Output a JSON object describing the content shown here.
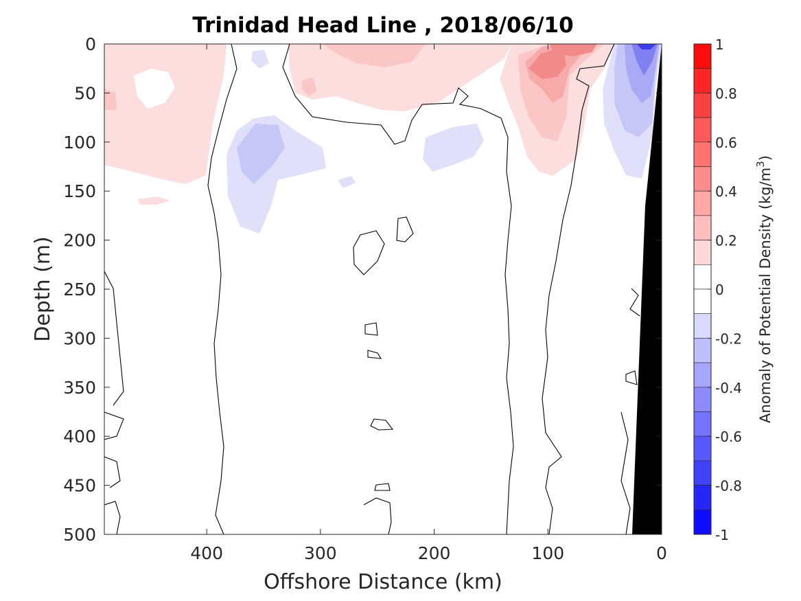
{
  "chart_data": {
    "type": "heatmap",
    "title": "Trinidad Head Line , 2018/06/10",
    "xlabel": "Offshore Distance (km)",
    "ylabel": "Depth (m)",
    "xlim": [
      490,
      0
    ],
    "ylim": [
      0,
      500
    ],
    "x_ticks": [
      "400",
      "300",
      "200",
      "100",
      "0"
    ],
    "x_tick_values": [
      400,
      300,
      200,
      100,
      0
    ],
    "y_ticks": [
      "0",
      "50",
      "100",
      "150",
      "200",
      "250",
      "300",
      "350",
      "400",
      "450",
      "500"
    ],
    "y_tick_values": [
      0,
      50,
      100,
      150,
      200,
      250,
      300,
      350,
      400,
      450,
      500
    ],
    "colorbar": {
      "label": "Anomaly of Potential Density (kg/m3)",
      "label_main": "Anomaly of Potential Density (kg/m",
      "label_sup": "3",
      "label_close": ")",
      "range": [
        -1,
        1
      ],
      "levels_step": 0.1,
      "ticks": [
        "1",
        "0.8",
        "0.6",
        "0.4",
        "0.2",
        "0",
        "-0.2",
        "-0.4",
        "-0.6",
        "-0.8",
        "-1"
      ],
      "tick_values": [
        1,
        0.8,
        0.6,
        0.4,
        0.2,
        0,
        -0.2,
        -0.4,
        -0.6,
        -0.8,
        -1
      ]
    },
    "zero_contour_lines": true,
    "bathymetry_fill": "#000000",
    "anomaly_regions": [
      {
        "center_km": 440,
        "depth_m": 95,
        "value": 0.15,
        "note": "offshore positive"
      },
      {
        "center_km": 355,
        "depth_m": 125,
        "value": -0.25,
        "note": "negative core"
      },
      {
        "center_km": 265,
        "depth_m": 40,
        "value": 0.2,
        "note": "near-surface positive"
      },
      {
        "center_km": 185,
        "depth_m": 110,
        "value": -0.15,
        "note": "mid negative"
      },
      {
        "center_km": 100,
        "depth_m": 40,
        "value": 0.45,
        "note": "near-shore positive max"
      },
      {
        "center_km": 35,
        "depth_m": 70,
        "value": -0.35,
        "note": "coastal negative"
      },
      {
        "center_km": 15,
        "depth_m": 5,
        "value": -0.8,
        "note": "surface negative min"
      }
    ]
  }
}
